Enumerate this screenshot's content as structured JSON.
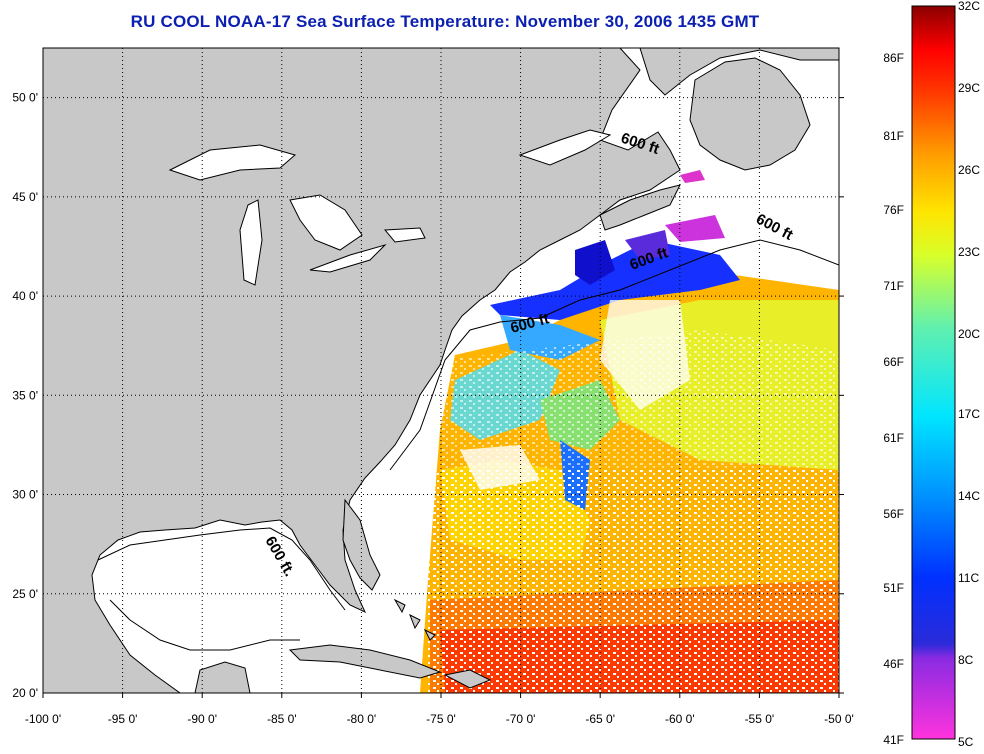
{
  "title": "RU COOL  NOAA-17  Sea Surface Temperature:  November 30, 2006 1435 GMT",
  "title_color": "#0b1fb0",
  "land_color": "#c8c8c8",
  "map": {
    "lon_range": [
      -100,
      -50
    ],
    "lat_range": [
      20,
      52.5
    ],
    "lon_ticks": [
      "-100 0'",
      "-95 0'",
      "-90 0'",
      "-85 0'",
      "-80 0'",
      "-75 0'",
      "-70 0'",
      "-65 0'",
      "-60 0'",
      "-55 0'",
      "-50 0'"
    ],
    "lat_ticks": [
      "20 0'",
      "25 0'",
      "30 0'",
      "35 0'",
      "40 0'",
      "45 0'",
      "50 0'"
    ],
    "contour_label": "600 ft",
    "contour_label_short": "600 ft.",
    "grid": "dotted"
  },
  "colorbar": {
    "fahrenheit": [
      "86F",
      "81F",
      "76F",
      "71F",
      "66F",
      "61F",
      "56F",
      "51F",
      "46F",
      "41F"
    ],
    "celsius": [
      "32C",
      "29C",
      "26C",
      "23C",
      "20C",
      "17C",
      "14C",
      "11C",
      "8C",
      "5C"
    ],
    "range_c": [
      5,
      32
    ]
  }
}
